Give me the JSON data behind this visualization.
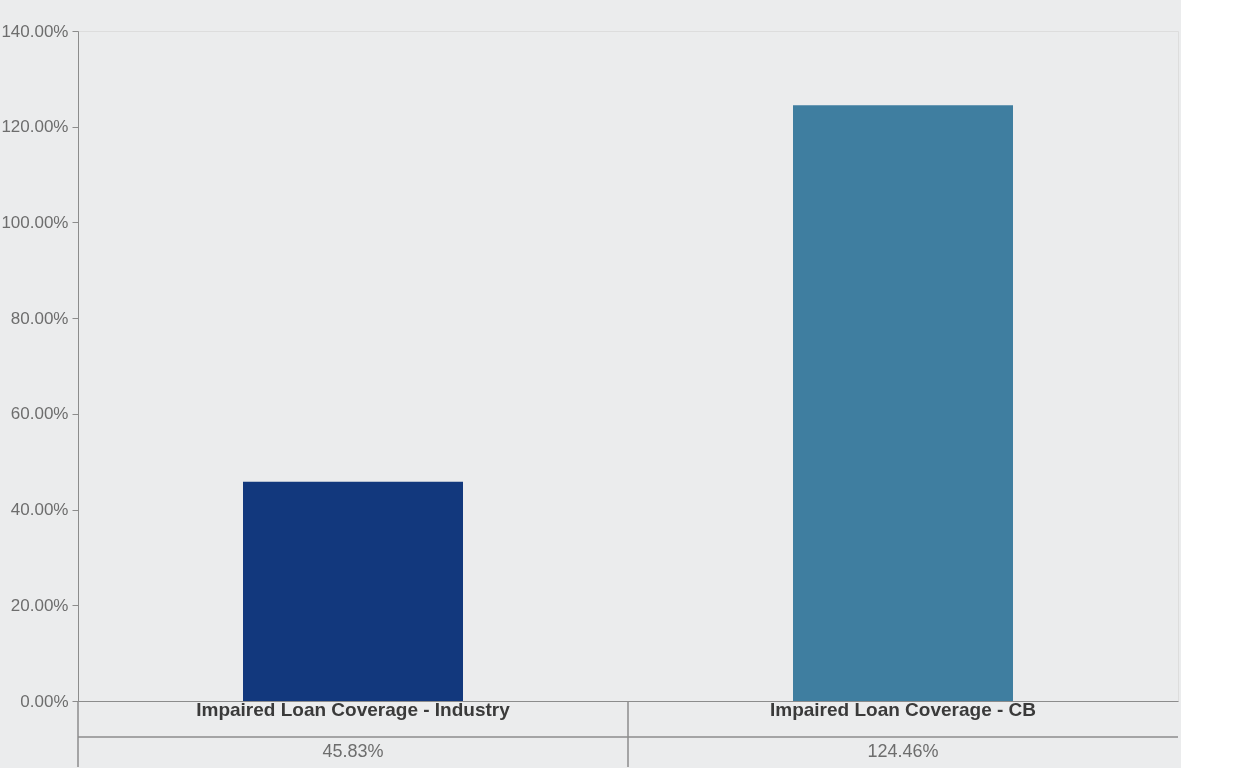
{
  "chart_data": {
    "type": "bar",
    "categories": [
      "Impaired Loan Coverage - Industry",
      "Impaired Loan Coverage - CB"
    ],
    "values": [
      45.83,
      124.46
    ],
    "colors": [
      "#12387d",
      "#3f7ea0"
    ],
    "value_labels": [
      "45.83%",
      "124.46%"
    ],
    "ylim": [
      0,
      140
    ],
    "yticks": [
      {
        "value": 0,
        "label": "0.00%"
      },
      {
        "value": 20,
        "label": "20.00%"
      },
      {
        "value": 40,
        "label": "40.00%"
      },
      {
        "value": 60,
        "label": "60.00%"
      },
      {
        "value": 80,
        "label": "80.00%"
      },
      {
        "value": 100,
        "label": "100.00%"
      },
      {
        "value": 120,
        "label": "120.00%"
      },
      {
        "value": 140,
        "label": "140.00%"
      }
    ],
    "grid": false
  }
}
